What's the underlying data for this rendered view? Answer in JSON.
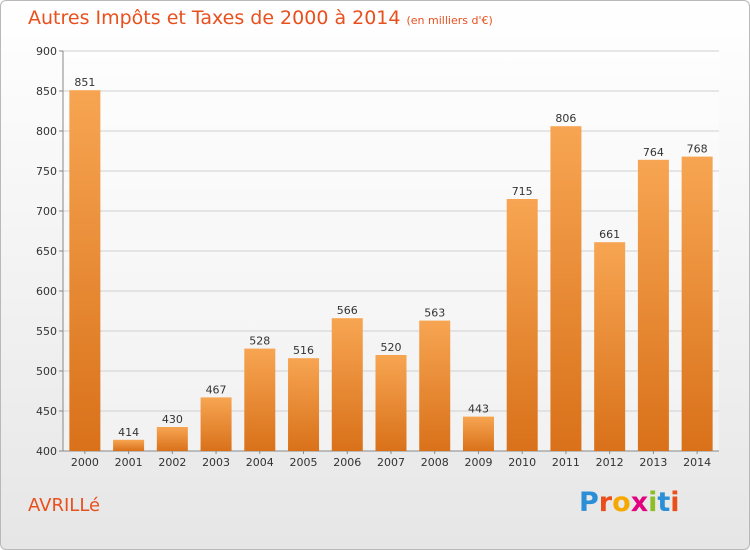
{
  "title": "Autres Impôts et Taxes de 2000 à 2014",
  "unit_note": "(en milliers d'€)",
  "city": "AVRILLé",
  "logo": "Proxiti",
  "logo_colors": [
    "#2b8fd8",
    "#e94e1b",
    "#f7a800",
    "#e3007e",
    "#8cbf26",
    "#2b8fd8",
    "#e94e1b"
  ],
  "colors": {
    "title": "#e8501e",
    "bar_light": "#f7a552",
    "bar_dark": "#d9711a",
    "grid": "#d0d0d0"
  },
  "chart_data": {
    "type": "bar",
    "categories": [
      "2000",
      "2001",
      "2002",
      "2003",
      "2004",
      "2005",
      "2006",
      "2007",
      "2008",
      "2009",
      "2010",
      "2011",
      "2012",
      "2013",
      "2014"
    ],
    "values": [
      851,
      414,
      430,
      467,
      528,
      516,
      566,
      520,
      563,
      443,
      715,
      806,
      661,
      764,
      768
    ],
    "ylim": [
      400,
      900
    ],
    "yticks": [
      400,
      450,
      500,
      550,
      600,
      650,
      700,
      750,
      800,
      850,
      900
    ],
    "grid": true
  }
}
